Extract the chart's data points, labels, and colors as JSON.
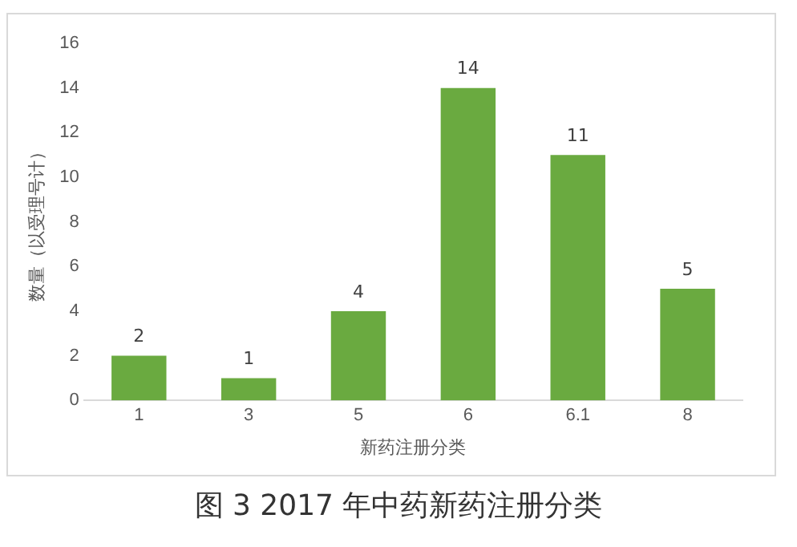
{
  "chart_data": {
    "type": "bar",
    "xlabel": "新药注册分类",
    "ylabel": "数量（以受理号计）",
    "categories": [
      "1",
      "3",
      "5",
      "6",
      "6.1",
      "8"
    ],
    "values": [
      2,
      1,
      4,
      14,
      11,
      5
    ],
    "color": "#6aaa40",
    "ylim": [
      0,
      16
    ],
    "yticks": [
      0,
      2,
      4,
      6,
      8,
      10,
      12,
      14,
      16
    ],
    "grid": false,
    "legend": false,
    "data_labels": true,
    "annotations": [
      "图 3 2017 年中药新药注册分类"
    ]
  }
}
